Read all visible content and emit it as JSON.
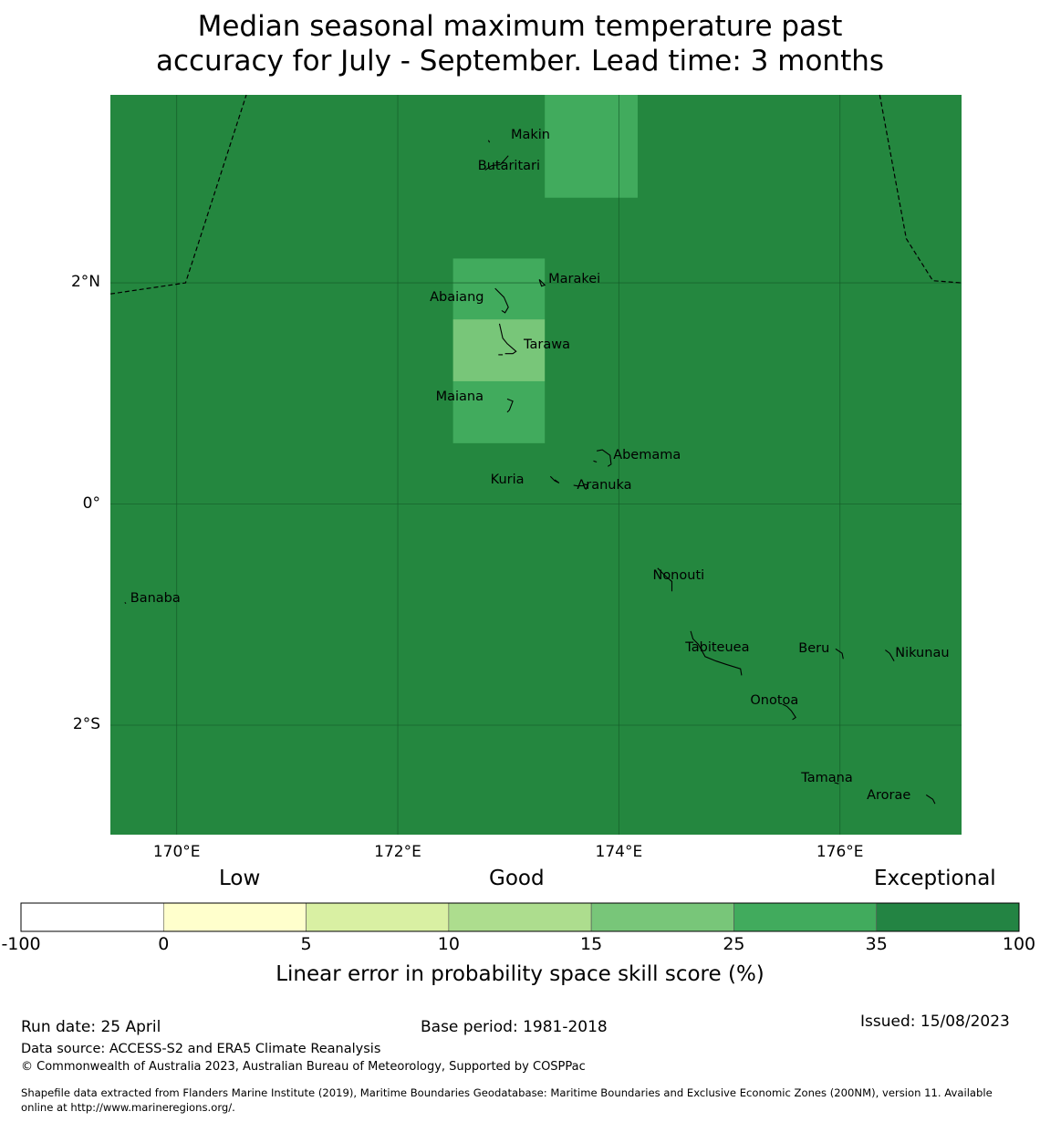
{
  "title_line1": "Median seasonal maximum temperature past",
  "title_line2": "accuracy for July - September. Lead time: 3 months",
  "map": {
    "extent": {
      "lon_min": 169.4,
      "lon_max": 177.1,
      "lat_min": -2.99,
      "lat_max": 3.7
    },
    "background_color": "#24873f",
    "gridlines": true,
    "lat_ticks": [
      {
        "value": 2,
        "label": "2°N"
      },
      {
        "value": 0,
        "label": "0°"
      },
      {
        "value": -2,
        "label": "2°S"
      }
    ],
    "lon_ticks": [
      {
        "value": 170,
        "label": "170°E"
      },
      {
        "value": 172,
        "label": "172°E"
      },
      {
        "value": 174,
        "label": "174°E"
      },
      {
        "value": 176,
        "label": "176°E"
      }
    ],
    "cells": [
      {
        "lon0": 173.33,
        "lon1": 174.17,
        "lat0": 2.77,
        "lat1": 3.7,
        "category": "25-35",
        "color": "#41ab5d"
      },
      {
        "lon0": 172.5,
        "lon1": 173.33,
        "lat0": 1.67,
        "lat1": 2.22,
        "category": "25-35",
        "color": "#41ab5d"
      },
      {
        "lon0": 172.5,
        "lon1": 173.33,
        "lat0": 1.11,
        "lat1": 1.67,
        "category": "15-25",
        "color": "#78c679"
      },
      {
        "lon0": 172.5,
        "lon1": 173.33,
        "lat0": 0.55,
        "lat1": 1.11,
        "category": "25-35",
        "color": "#41ab5d"
      }
    ],
    "islands": [
      {
        "name": "Makin",
        "lon": 172.99,
        "lat": 3.31
      },
      {
        "name": "Butaritari",
        "lon": 172.79,
        "lat": 3.04
      },
      {
        "name": "Marakei",
        "lon": 173.28,
        "lat": 1.99
      },
      {
        "name": "Abaiang",
        "lon": 172.95,
        "lat": 1.84
      },
      {
        "name": "Tarawa",
        "lon": 173.04,
        "lat": 1.4
      },
      {
        "name": "Maiana",
        "lon": 173.02,
        "lat": 0.94
      },
      {
        "name": "Abemama",
        "lon": 173.85,
        "lat": 0.4
      },
      {
        "name": "Kuria",
        "lon": 173.4,
        "lat": 0.22
      },
      {
        "name": "Aranuka",
        "lon": 173.62,
        "lat": 0.17
      },
      {
        "name": "Banaba",
        "lon": 169.53,
        "lat": -0.88
      },
      {
        "name": "Nonouti",
        "lon": 174.43,
        "lat": -0.65
      },
      {
        "name": "Tabiteuea",
        "lon": 174.8,
        "lat": -1.3
      },
      {
        "name": "Beru",
        "lon": 175.98,
        "lat": -1.33
      },
      {
        "name": "Nikunau",
        "lon": 176.45,
        "lat": -1.35
      },
      {
        "name": "Onotoa",
        "lon": 175.56,
        "lat": -1.8
      },
      {
        "name": "Tamana",
        "lon": 175.98,
        "lat": -2.5
      },
      {
        "name": "Arorae",
        "lon": 176.82,
        "lat": -2.64
      }
    ]
  },
  "colorbar": {
    "category_labels": {
      "low": "Low",
      "good": "Good",
      "exceptional": "Exceptional"
    },
    "boundaries": [
      "-100",
      "0",
      "5",
      "10",
      "15",
      "25",
      "35",
      "100"
    ],
    "colors": [
      "#ffffff",
      "#ffffcc",
      "#d9f0a3",
      "#addd8e",
      "#78c679",
      "#41ab5d",
      "#238443"
    ],
    "title": "Linear error in probability space skill score (%)"
  },
  "footer": {
    "run_date": "Run date: 25 April",
    "base_period": "Base period: 1981-2018",
    "issued": "Issued: 15/08/2023",
    "data_source": "Data source: ACCESS-S2 and ERA5 Climate Reanalysis",
    "copyright": "© Commonwealth of Australia 2023, Australian Bureau of Meteorology, Supported by COSPPac",
    "shapefile_line1": "Shapefile data extracted from Flanders Marine Institute (2019), Maritime Boundaries Geodatabase: Maritime Boundaries and Exclusive Economic Zones (200NM), version 11. Available",
    "shapefile_line2": "online at http://www.marineregions.org/."
  }
}
